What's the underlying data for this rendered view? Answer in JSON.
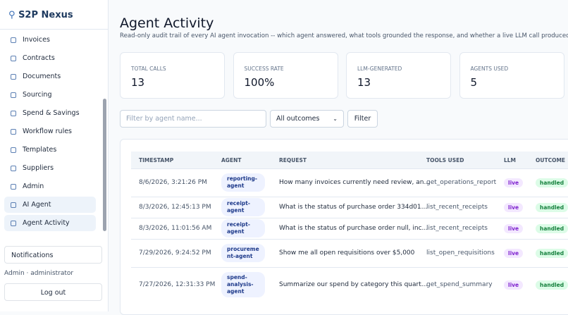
{
  "sidebar": {
    "brand": "S2P Nexus",
    "nav": [
      "Invoices",
      "Contracts",
      "Documents",
      "Sourcing",
      "Spend & Savings",
      "Workflow rules",
      "Templates",
      "Suppliers",
      "Admin",
      "AI Agent",
      "Agent Activity"
    ],
    "notifications": "Notifications",
    "user": "Admin · administrator",
    "logout": "Log out"
  },
  "header": {
    "title": "Agent Activity",
    "subtitle": "Read-only audit trail of every AI agent invocation -- which agent answered, what tools grounded the response, and whether a live LLM call produced it."
  },
  "stats": [
    {
      "label": "TOTAL CALLS",
      "value": "13"
    },
    {
      "label": "SUCCESS RATE",
      "value": "100%"
    },
    {
      "label": "LLM-GENERATED",
      "value": "13"
    },
    {
      "label": "AGENTS USED",
      "value": "5"
    }
  ],
  "filter": {
    "placeholder": "Filter by agent name...",
    "select": "All outcomes",
    "button": "Filter"
  },
  "table": {
    "columns": [
      "TIMESTAMP",
      "AGENT",
      "REQUEST",
      "TOOLS USED",
      "LLM",
      "OUTCOME"
    ],
    "rows": [
      [
        "8/6/2026, 3:21:26 PM",
        "reporting-agent",
        "How many invoices currently need review, an...",
        "get_operations_report",
        "live",
        "handled"
      ],
      [
        "8/3/2026, 12:45:13 PM",
        "receipt-agent",
        "What is the status of purchase order 334d01...",
        "list_recent_receipts",
        "live",
        "handled"
      ],
      [
        "8/3/2026, 11:01:56 AM",
        "receipt-agent",
        "What is the status of purchase order null, inc...",
        "list_recent_receipts",
        "live",
        "handled"
      ],
      [
        "7/29/2026, 9:24:52 PM",
        "procurement-agent",
        "Show me all open requisitions over $5,000",
        "list_open_requisitions",
        "live",
        "handled"
      ],
      [
        "7/27/2026, 12:31:33 PM",
        "spend-analysis-agent",
        "Summarize our spend by category this quart...",
        "get_spend_summary",
        "live",
        "handled"
      ]
    ]
  }
}
